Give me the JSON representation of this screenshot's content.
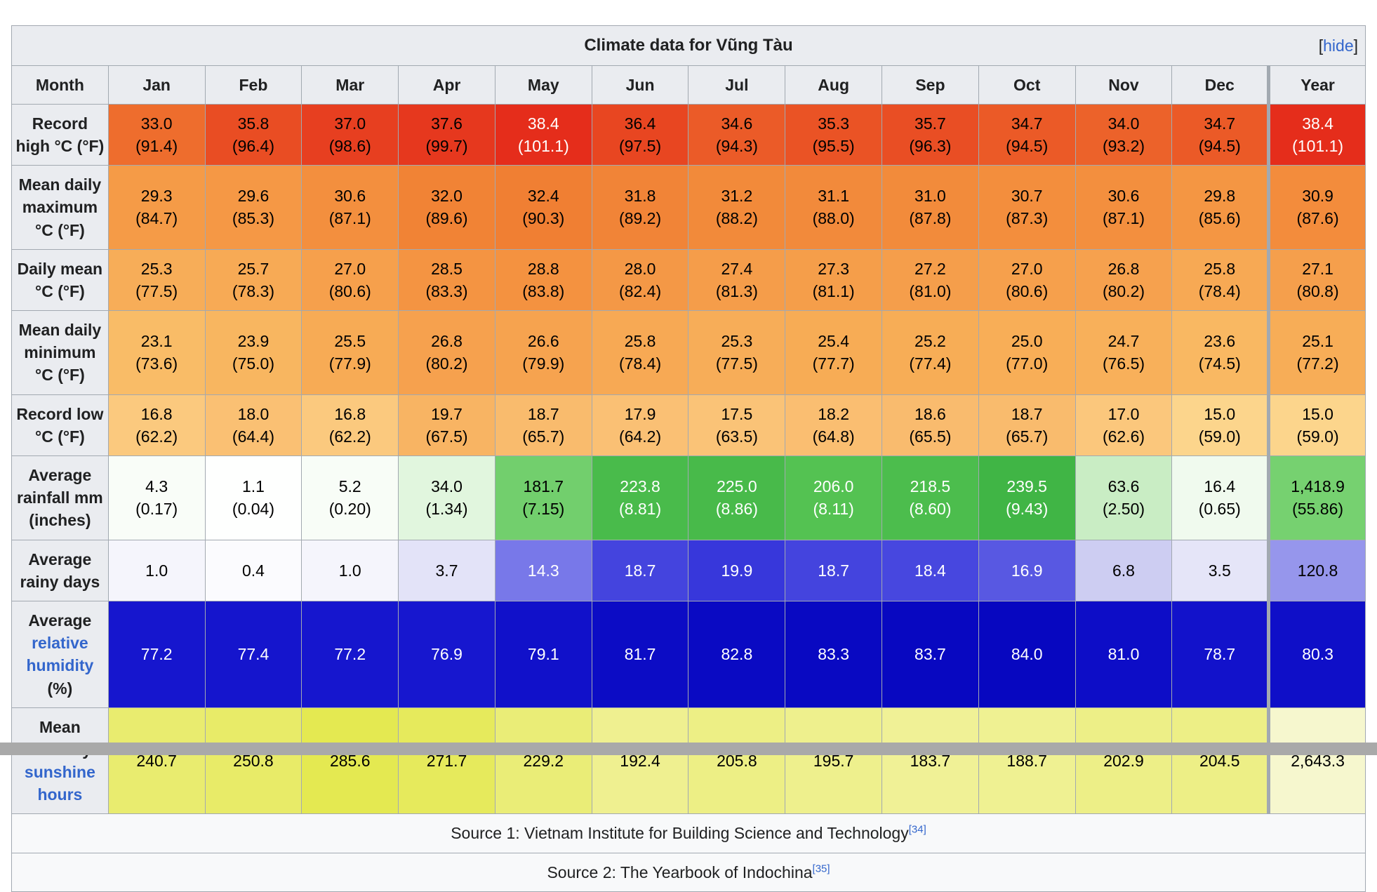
{
  "page": {
    "bottom_bar_color": "#a9a9a9",
    "link_color": "#3366cc",
    "border_color": "#a2a9b1",
    "header_bg": "#eaecf0",
    "table_bg": "#f8f9fa"
  },
  "table": {
    "title": "Climate data for Vũng Tàu",
    "hide_label": "hide",
    "columns": [
      "Month",
      "Jan",
      "Feb",
      "Mar",
      "Apr",
      "May",
      "Jun",
      "Jul",
      "Aug",
      "Sep",
      "Oct",
      "Nov",
      "Dec",
      "Year"
    ],
    "rows": [
      {
        "label": [
          {
            "text": "Record high °C (°F)",
            "link": false
          }
        ],
        "cells": [
          {
            "v": "33.0",
            "v2": "(91.4)",
            "bg": "#EE6D2D"
          },
          {
            "v": "35.8",
            "v2": "(96.4)",
            "bg": "#E94D23"
          },
          {
            "v": "37.0",
            "v2": "(98.6)",
            "bg": "#E73F20"
          },
          {
            "v": "37.6",
            "v2": "(99.7)",
            "bg": "#E6381E"
          },
          {
            "v": "38.4",
            "v2": "(101.1)",
            "bg": "#E52D1B",
            "fg": "#FFFFFF"
          },
          {
            "v": "36.4",
            "v2": "(97.5)",
            "bg": "#E84621"
          },
          {
            "v": "34.6",
            "v2": "(94.3)",
            "bg": "#EB5B28"
          },
          {
            "v": "35.3",
            "v2": "(95.5)",
            "bg": "#EA5325"
          },
          {
            "v": "35.7",
            "v2": "(96.3)",
            "bg": "#E94E24"
          },
          {
            "v": "34.7",
            "v2": "(94.5)",
            "bg": "#EB5A27"
          },
          {
            "v": "34.0",
            "v2": "(93.2)",
            "bg": "#EC622A"
          },
          {
            "v": "34.7",
            "v2": "(94.5)",
            "bg": "#EB5A27"
          },
          {
            "v": "38.4",
            "v2": "(101.1)",
            "bg": "#E52D1B",
            "fg": "#FFFFFF"
          }
        ]
      },
      {
        "label": [
          {
            "text": "Mean daily maximum °C (°F)",
            "link": false
          }
        ],
        "cells": [
          {
            "v": "29.3",
            "v2": "(84.7)",
            "bg": "#F59B47"
          },
          {
            "v": "29.6",
            "v2": "(85.3)",
            "bg": "#F59845"
          },
          {
            "v": "30.6",
            "v2": "(87.1)",
            "bg": "#F38F3E"
          },
          {
            "v": "32.0",
            "v2": "(89.6)",
            "bg": "#F18335"
          },
          {
            "v": "32.4",
            "v2": "(90.3)",
            "bg": "#F07F33"
          },
          {
            "v": "31.8",
            "v2": "(89.2)",
            "bg": "#F18437"
          },
          {
            "v": "31.2",
            "v2": "(88.2)",
            "bg": "#F28A3A"
          },
          {
            "v": "31.1",
            "v2": "(88.0)",
            "bg": "#F28A3B"
          },
          {
            "v": "31.0",
            "v2": "(87.8)",
            "bg": "#F28B3B"
          },
          {
            "v": "30.7",
            "v2": "(87.3)",
            "bg": "#F38E3D"
          },
          {
            "v": "30.6",
            "v2": "(87.1)",
            "bg": "#F38F3E"
          },
          {
            "v": "29.8",
            "v2": "(85.6)",
            "bg": "#F49643"
          },
          {
            "v": "30.9",
            "v2": "(87.6)",
            "bg": "#F38C3C"
          }
        ]
      },
      {
        "label": [
          {
            "text": "Daily mean °C (°F)",
            "link": false
          }
        ],
        "cells": [
          {
            "v": "25.3",
            "v2": "(77.5)",
            "bg": "#F7AD58"
          },
          {
            "v": "25.7",
            "v2": "(78.3)",
            "bg": "#F7AA55"
          },
          {
            "v": "27.0",
            "v2": "(80.6)",
            "bg": "#F6A04C"
          },
          {
            "v": "28.5",
            "v2": "(83.3)",
            "bg": "#F49442"
          },
          {
            "v": "28.8",
            "v2": "(83.8)",
            "bg": "#F49240"
          },
          {
            "v": "28.0",
            "v2": "(82.4)",
            "bg": "#F49846"
          },
          {
            "v": "27.4",
            "v2": "(81.3)",
            "bg": "#F59D4A"
          },
          {
            "v": "27.3",
            "v2": "(81.1)",
            "bg": "#F59E4A"
          },
          {
            "v": "27.2",
            "v2": "(81.0)",
            "bg": "#F59E4B"
          },
          {
            "v": "27.0",
            "v2": "(80.6)",
            "bg": "#F6A04C"
          },
          {
            "v": "26.8",
            "v2": "(80.2)",
            "bg": "#F6A14E"
          },
          {
            "v": "25.8",
            "v2": "(78.4)",
            "bg": "#F7A954"
          },
          {
            "v": "27.1",
            "v2": "(80.8)",
            "bg": "#F59F4C"
          }
        ]
      },
      {
        "label": [
          {
            "text": "Mean daily minimum °C (°F)",
            "link": false
          }
        ],
        "cells": [
          {
            "v": "23.1",
            "v2": "(73.6)",
            "bg": "#F9BC67"
          },
          {
            "v": "23.9",
            "v2": "(75.0)",
            "bg": "#F8B660"
          },
          {
            "v": "25.5",
            "v2": "(77.9)",
            "bg": "#F7AB55"
          },
          {
            "v": "26.8",
            "v2": "(80.2)",
            "bg": "#F6A14E"
          },
          {
            "v": "26.6",
            "v2": "(79.9)",
            "bg": "#F6A34F"
          },
          {
            "v": "25.8",
            "v2": "(78.4)",
            "bg": "#F7A954"
          },
          {
            "v": "25.3",
            "v2": "(77.5)",
            "bg": "#F7AD58"
          },
          {
            "v": "25.4",
            "v2": "(77.7)",
            "bg": "#F7AC55"
          },
          {
            "v": "25.2",
            "v2": "(77.4)",
            "bg": "#F7AD56"
          },
          {
            "v": "25.0",
            "v2": "(77.0)",
            "bg": "#F8AE57"
          },
          {
            "v": "24.7",
            "v2": "(76.5)",
            "bg": "#F8B05A"
          },
          {
            "v": "23.6",
            "v2": "(74.5)",
            "bg": "#F9B862"
          },
          {
            "v": "25.1",
            "v2": "(77.2)",
            "bg": "#F7AD57"
          }
        ]
      },
      {
        "label": [
          {
            "text": "Record low °C (°F)",
            "link": false
          }
        ],
        "cells": [
          {
            "v": "16.8",
            "v2": "(62.2)",
            "bg": "#FBC97E"
          },
          {
            "v": "18.0",
            "v2": "(64.4)",
            "bg": "#FAC073"
          },
          {
            "v": "16.8",
            "v2": "(62.2)",
            "bg": "#FBC97E"
          },
          {
            "v": "19.7",
            "v2": "(67.5)",
            "bg": "#F8B463"
          },
          {
            "v": "18.7",
            "v2": "(65.7)",
            "bg": "#F9BB6D"
          },
          {
            "v": "17.9",
            "v2": "(64.2)",
            "bg": "#FAC074"
          },
          {
            "v": "17.5",
            "v2": "(63.5)",
            "bg": "#FAC377"
          },
          {
            "v": "18.2",
            "v2": "(64.8)",
            "bg": "#FABE71"
          },
          {
            "v": "18.6",
            "v2": "(65.5)",
            "bg": "#F9BB6E"
          },
          {
            "v": "18.7",
            "v2": "(65.7)",
            "bg": "#F9BB6D"
          },
          {
            "v": "17.0",
            "v2": "(62.6)",
            "bg": "#FBC77C"
          },
          {
            "v": "15.0",
            "v2": "(59.0)",
            "bg": "#FCD58C"
          },
          {
            "v": "15.0",
            "v2": "(59.0)",
            "bg": "#FCD58C"
          }
        ]
      },
      {
        "label": [
          {
            "text": "Average rainfall mm (inches)",
            "link": false
          }
        ],
        "cells": [
          {
            "v": "4.3",
            "v2": "(0.17)",
            "bg": "#F9FDF8"
          },
          {
            "v": "1.1",
            "v2": "(0.04)",
            "bg": "#FEFFFE"
          },
          {
            "v": "5.2",
            "v2": "(0.20)",
            "bg": "#F8FDF7"
          },
          {
            "v": "34.0",
            "v2": "(1.34)",
            "bg": "#E1F6DE"
          },
          {
            "v": "181.7",
            "v2": "(7.15)",
            "bg": "#72CF6D"
          },
          {
            "v": "223.8",
            "v2": "(8.81)",
            "bg": "#49BB4B",
            "fg": "#FFFFFF"
          },
          {
            "v": "225.0",
            "v2": "(8.86)",
            "bg": "#48BA4A",
            "fg": "#FFFFFF"
          },
          {
            "v": "206.0",
            "v2": "(8.11)",
            "bg": "#54C252",
            "fg": "#FFFFFF"
          },
          {
            "v": "218.5",
            "v2": "(8.60)",
            "bg": "#4CBD4D",
            "fg": "#FFFFFF"
          },
          {
            "v": "239.5",
            "v2": "(9.43)",
            "bg": "#40B545",
            "fg": "#FFFFFF"
          },
          {
            "v": "63.6",
            "v2": "(2.50)",
            "bg": "#C9EDC4"
          },
          {
            "v": "16.4",
            "v2": "(0.65)",
            "bg": "#F0FAEE"
          },
          {
            "v": "1,418.9",
            "v2": "(55.86)",
            "bg": "#76D170"
          }
        ]
      },
      {
        "label": [
          {
            "text": "Average rainy days",
            "link": false
          }
        ],
        "cells": [
          {
            "v": "1.0",
            "bg": "#F5F5FC"
          },
          {
            "v": "0.4",
            "bg": "#FBFBFE"
          },
          {
            "v": "1.0",
            "bg": "#F5F5FC"
          },
          {
            "v": "3.7",
            "bg": "#E3E3F8"
          },
          {
            "v": "14.3",
            "bg": "#7878E9",
            "fg": "#FFFFFF"
          },
          {
            "v": "18.7",
            "bg": "#4444DE",
            "fg": "#FFFFFF"
          },
          {
            "v": "19.9",
            "bg": "#3737DB",
            "fg": "#FFFFFF"
          },
          {
            "v": "18.7",
            "bg": "#4444DE",
            "fg": "#FFFFFF"
          },
          {
            "v": "18.4",
            "bg": "#4747DF",
            "fg": "#FFFFFF"
          },
          {
            "v": "16.9",
            "bg": "#5858E2",
            "fg": "#FFFFFF"
          },
          {
            "v": "6.8",
            "bg": "#CDCDF2"
          },
          {
            "v": "3.5",
            "bg": "#E5E5F8"
          },
          {
            "v": "120.8",
            "bg": "#9696EC"
          }
        ]
      },
      {
        "label": [
          {
            "text": "Average ",
            "link": false
          },
          {
            "text": "relative humidity",
            "link": true
          },
          {
            "text": " (%)",
            "link": false
          }
        ],
        "cells": [
          {
            "v": "77.2",
            "bg": "#1616CE",
            "fg": "#FFFFFF"
          },
          {
            "v": "77.4",
            "bg": "#1515CD",
            "fg": "#FFFFFF"
          },
          {
            "v": "77.2",
            "bg": "#1616CE",
            "fg": "#FFFFFF"
          },
          {
            "v": "76.9",
            "bg": "#1717CF",
            "fg": "#FFFFFF"
          },
          {
            "v": "79.1",
            "bg": "#1111CA",
            "fg": "#FFFFFF"
          },
          {
            "v": "81.7",
            "bg": "#0C0CC5",
            "fg": "#FFFFFF"
          },
          {
            "v": "82.8",
            "bg": "#0A0AC3",
            "fg": "#FFFFFF"
          },
          {
            "v": "83.3",
            "bg": "#0909C2",
            "fg": "#FFFFFF"
          },
          {
            "v": "83.7",
            "bg": "#0808C1",
            "fg": "#FFFFFF"
          },
          {
            "v": "84.0",
            "bg": "#0707C0",
            "fg": "#FFFFFF"
          },
          {
            "v": "81.0",
            "bg": "#0D0DC7",
            "fg": "#FFFFFF"
          },
          {
            "v": "78.7",
            "bg": "#1212CB",
            "fg": "#FFFFFF"
          },
          {
            "v": "80.3",
            "bg": "#0F0FC8",
            "fg": "#FFFFFF"
          }
        ]
      },
      {
        "label": [
          {
            "text": "Mean monthly ",
            "link": false
          },
          {
            "text": "sunshine hours",
            "link": true
          }
        ],
        "cells": [
          {
            "v": "240.7",
            "bg": "#E9EC6F"
          },
          {
            "v": "250.8",
            "bg": "#E8EB68"
          },
          {
            "v": "285.6",
            "bg": "#E4E951"
          },
          {
            "v": "271.7",
            "bg": "#E6EA5C"
          },
          {
            "v": "229.2",
            "bg": "#EAED77"
          },
          {
            "v": "192.4",
            "bg": "#EFF090"
          },
          {
            "v": "205.8",
            "bg": "#EDEF85"
          },
          {
            "v": "195.7",
            "bg": "#EEF08D"
          },
          {
            "v": "183.7",
            "bg": "#F0F196"
          },
          {
            "v": "188.7",
            "bg": "#EFF192"
          },
          {
            "v": "202.9",
            "bg": "#EDEF87"
          },
          {
            "v": "204.5",
            "bg": "#EDEF86"
          },
          {
            "v": "2,643.3",
            "bg": "#F6F7CE"
          }
        ]
      }
    ],
    "sources": [
      {
        "text": "Source 1: Vietnam Institute for Building Science and Technology",
        "ref": "[34]"
      },
      {
        "text": "Source 2: The Yearbook of Indochina",
        "ref": "[35]"
      }
    ]
  },
  "chart_data": {
    "type": "table",
    "title": "Climate data for Vũng Tàu",
    "categories": [
      "Jan",
      "Feb",
      "Mar",
      "Apr",
      "May",
      "Jun",
      "Jul",
      "Aug",
      "Sep",
      "Oct",
      "Nov",
      "Dec"
    ],
    "series": [
      {
        "name": "Record high °C",
        "values": [
          33.0,
          35.8,
          37.0,
          37.6,
          38.4,
          36.4,
          34.6,
          35.3,
          35.7,
          34.7,
          34.0,
          34.7
        ],
        "year": 38.4
      },
      {
        "name": "Record high °F",
        "values": [
          91.4,
          96.4,
          98.6,
          99.7,
          101.1,
          97.5,
          94.3,
          95.5,
          96.3,
          94.5,
          93.2,
          94.5
        ],
        "year": 101.1
      },
      {
        "name": "Mean daily maximum °C",
        "values": [
          29.3,
          29.6,
          30.6,
          32.0,
          32.4,
          31.8,
          31.2,
          31.1,
          31.0,
          30.7,
          30.6,
          29.8
        ],
        "year": 30.9
      },
      {
        "name": "Mean daily maximum °F",
        "values": [
          84.7,
          85.3,
          87.1,
          89.6,
          90.3,
          89.2,
          88.2,
          88.0,
          87.8,
          87.3,
          87.1,
          85.6
        ],
        "year": 87.6
      },
      {
        "name": "Daily mean °C",
        "values": [
          25.3,
          25.7,
          27.0,
          28.5,
          28.8,
          28.0,
          27.4,
          27.3,
          27.2,
          27.0,
          26.8,
          25.8
        ],
        "year": 27.1
      },
      {
        "name": "Daily mean °F",
        "values": [
          77.5,
          78.3,
          80.6,
          83.3,
          83.8,
          82.4,
          81.3,
          81.1,
          81.0,
          80.6,
          80.2,
          78.4
        ],
        "year": 80.8
      },
      {
        "name": "Mean daily minimum °C",
        "values": [
          23.1,
          23.9,
          25.5,
          26.8,
          26.6,
          25.8,
          25.3,
          25.4,
          25.2,
          25.0,
          24.7,
          23.6
        ],
        "year": 25.1
      },
      {
        "name": "Mean daily minimum °F",
        "values": [
          73.6,
          75.0,
          77.9,
          80.2,
          79.9,
          78.4,
          77.5,
          77.7,
          77.4,
          77.0,
          76.5,
          74.5
        ],
        "year": 77.2
      },
      {
        "name": "Record low °C",
        "values": [
          16.8,
          18.0,
          16.8,
          19.7,
          18.7,
          17.9,
          17.5,
          18.2,
          18.6,
          18.7,
          17.0,
          15.0
        ],
        "year": 15.0
      },
      {
        "name": "Record low °F",
        "values": [
          62.2,
          64.4,
          62.2,
          67.5,
          65.7,
          64.2,
          63.5,
          64.8,
          65.5,
          65.7,
          62.6,
          59.0
        ],
        "year": 59.0
      },
      {
        "name": "Average rainfall mm",
        "values": [
          4.3,
          1.1,
          5.2,
          34.0,
          181.7,
          223.8,
          225.0,
          206.0,
          218.5,
          239.5,
          63.6,
          16.4
        ],
        "year": 1418.9
      },
      {
        "name": "Average rainfall inches",
        "values": [
          0.17,
          0.04,
          0.2,
          1.34,
          7.15,
          8.81,
          8.86,
          8.11,
          8.6,
          9.43,
          2.5,
          0.65
        ],
        "year": 55.86
      },
      {
        "name": "Average rainy days",
        "values": [
          1.0,
          0.4,
          1.0,
          3.7,
          14.3,
          18.7,
          19.9,
          18.7,
          18.4,
          16.9,
          6.8,
          3.5
        ],
        "year": 120.8
      },
      {
        "name": "Average relative humidity %",
        "values": [
          77.2,
          77.4,
          77.2,
          76.9,
          79.1,
          81.7,
          82.8,
          83.3,
          83.7,
          84.0,
          81.0,
          78.7
        ],
        "year": 80.3
      },
      {
        "name": "Mean monthly sunshine hours",
        "values": [
          240.7,
          250.8,
          285.6,
          271.7,
          229.2,
          192.4,
          205.8,
          195.7,
          183.7,
          188.7,
          202.9,
          204.5
        ],
        "year": 2643.3
      }
    ]
  }
}
